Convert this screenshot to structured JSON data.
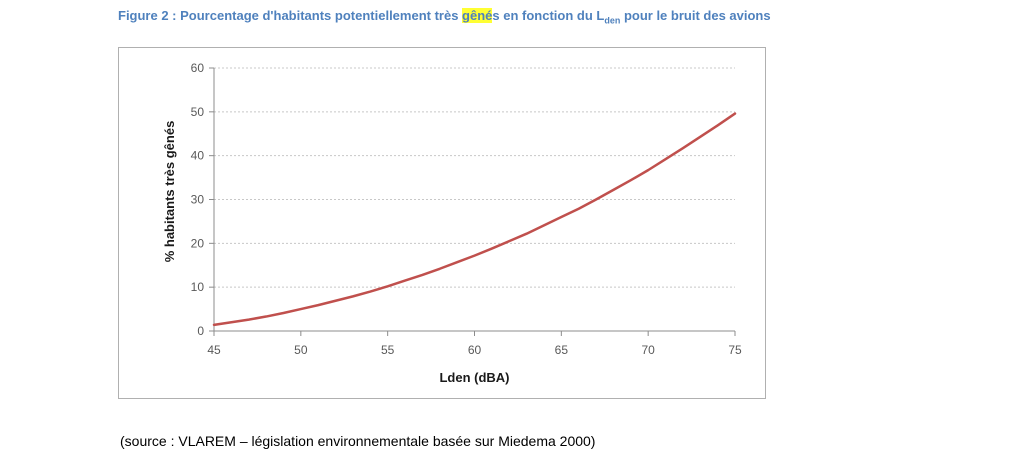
{
  "caption": {
    "prefix": "Figure 2 : Pourcentage d'habitants potentiellement très ",
    "highlight": "gêné",
    "middle": "s en fonction du L",
    "subscript": "den",
    "suffix": " pour le bruit des avions"
  },
  "source_note": "(source : VLAREM – législation environnementale basée sur Miedema 2000)",
  "colors": {
    "caption": "#4f81bd",
    "highlight": "#ffff33",
    "series_line": "#c0504d",
    "grid": "#c8c8c8"
  },
  "chart_data": {
    "type": "line",
    "title": "",
    "xlabel": "Lden (dBA)",
    "ylabel": "% habitants très gênés",
    "xlim": [
      45,
      75
    ],
    "ylim": [
      0,
      60
    ],
    "x_ticks": [
      "45",
      "50",
      "55",
      "60",
      "65",
      "70",
      "75"
    ],
    "y_ticks": [
      "0",
      "10",
      "20",
      "30",
      "40",
      "50",
      "60"
    ],
    "grid": true,
    "legend": "none",
    "series": [
      {
        "x": [
          45,
          46,
          47,
          48,
          49,
          50,
          51,
          52,
          53,
          54,
          55,
          56,
          57,
          58,
          59,
          60,
          61,
          62,
          63,
          64,
          65,
          66,
          67,
          68,
          69,
          70,
          71,
          72,
          73,
          74,
          75
        ],
        "values": [
          1.4,
          2.0,
          2.6,
          3.3,
          4.1,
          5.0,
          5.9,
          6.9,
          7.9,
          9.0,
          10.2,
          11.5,
          12.8,
          14.2,
          15.7,
          17.2,
          18.8,
          20.5,
          22.2,
          24.1,
          26.0,
          27.9,
          30.0,
          32.2,
          34.4,
          36.7,
          39.2,
          41.7,
          44.3,
          46.9,
          49.6
        ]
      }
    ]
  }
}
